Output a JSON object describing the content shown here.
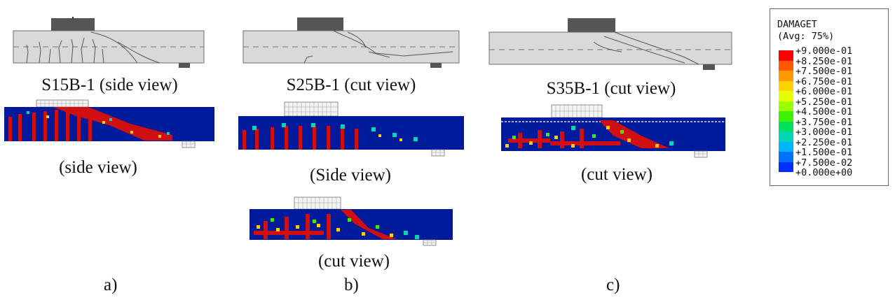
{
  "panels": [
    {
      "id": "a",
      "letter": "a)",
      "photo_caption": "S15B-1 (side view)",
      "fem_captions": [
        "(side view)"
      ]
    },
    {
      "id": "b",
      "letter": "b)",
      "photo_caption": "S25B-1 (cut view)",
      "fem_captions": [
        "(Side view)",
        "(cut view)"
      ]
    },
    {
      "id": "c",
      "letter": "c)",
      "photo_caption": "S35B-1 (cut view)",
      "fem_captions": [
        "(cut view)"
      ]
    }
  ],
  "legend": {
    "title_line1": "DAMAGET",
    "title_line2": "(Avg: 75%)",
    "levels": [
      "+9.000e-01",
      "+8.250e-01",
      "+7.500e-01",
      "+6.750e-01",
      "+6.000e-01",
      "+5.250e-01",
      "+4.500e-01",
      "+3.750e-01",
      "+3.000e-01",
      "+2.250e-01",
      "+1.500e-01",
      "+7.500e-02",
      "+0.000e+00"
    ],
    "colors": [
      "#ff0000",
      "#ff5a00",
      "#ff9a00",
      "#ffd200",
      "#e6ff00",
      "#9aff00",
      "#3cf000",
      "#00e060",
      "#00d8b4",
      "#00b4ff",
      "#0070ff",
      "#0030ff",
      "#0000c8"
    ]
  },
  "colors": {
    "beam_photo": "#d9d9d9",
    "beam_outline": "#6e6e6e",
    "loading_plate": "#555555",
    "fem_background": "#001a9c",
    "fem_damage": "#d01010"
  }
}
